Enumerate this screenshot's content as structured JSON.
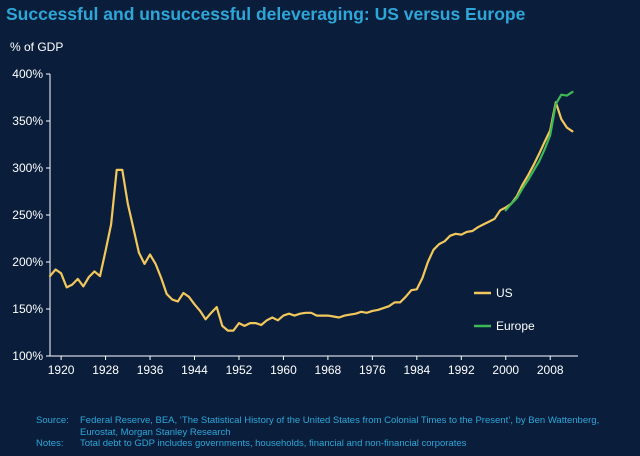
{
  "chart_data": {
    "type": "line",
    "title": "Successful and unsuccessful deleveraging: US versus Europe",
    "ylabel": "% of GDP",
    "xlabel": "",
    "xlim": [
      1918,
      2013
    ],
    "ylim": [
      100,
      400
    ],
    "x_ticks": [
      1920,
      1928,
      1936,
      1944,
      1952,
      1960,
      1968,
      1976,
      1984,
      1992,
      2000,
      2008
    ],
    "y_ticks": [
      {
        "value": 100,
        "label": "100%"
      },
      {
        "value": 150,
        "label": "150%"
      },
      {
        "value": 200,
        "label": "200%"
      },
      {
        "value": 250,
        "label": "250%"
      },
      {
        "value": 300,
        "label": "300%"
      },
      {
        "value": 350,
        "label": "350%"
      },
      {
        "value": 400,
        "label": "400%"
      }
    ],
    "legend_position": "right",
    "series": [
      {
        "name": "US",
        "color": "#f2c75c",
        "x": [
          1918,
          1919,
          1920,
          1921,
          1922,
          1923,
          1924,
          1925,
          1926,
          1927,
          1928,
          1929,
          1930,
          1931,
          1932,
          1933,
          1934,
          1935,
          1936,
          1937,
          1938,
          1939,
          1940,
          1941,
          1942,
          1943,
          1944,
          1945,
          1946,
          1947,
          1948,
          1949,
          1950,
          1951,
          1952,
          1953,
          1954,
          1955,
          1956,
          1957,
          1958,
          1959,
          1960,
          1961,
          1962,
          1963,
          1964,
          1965,
          1966,
          1967,
          1968,
          1969,
          1970,
          1971,
          1972,
          1973,
          1974,
          1975,
          1976,
          1977,
          1978,
          1979,
          1980,
          1981,
          1982,
          1983,
          1984,
          1985,
          1986,
          1987,
          1988,
          1989,
          1990,
          1991,
          1992,
          1993,
          1994,
          1995,
          1996,
          1997,
          1998,
          1999,
          2000,
          2001,
          2002,
          2003,
          2004,
          2005,
          2006,
          2007,
          2008,
          2009,
          2010,
          2011,
          2012
        ],
        "values": [
          185,
          192,
          188,
          173,
          176,
          182,
          174,
          184,
          190,
          185,
          212,
          240,
          298,
          298,
          262,
          236,
          210,
          198,
          208,
          198,
          183,
          166,
          160,
          158,
          167,
          163,
          155,
          148,
          139,
          146,
          152,
          132,
          127,
          127,
          135,
          132,
          135,
          135,
          133,
          138,
          141,
          138,
          143,
          145,
          143,
          145,
          146,
          146,
          143,
          143,
          143,
          142,
          141,
          143,
          144,
          145,
          147,
          146,
          148,
          149,
          151,
          153,
          157,
          157,
          163,
          170,
          171,
          183,
          200,
          213,
          219,
          222,
          228,
          230,
          229,
          232,
          233,
          237,
          240,
          243,
          246,
          255,
          258,
          262,
          270,
          282,
          292,
          303,
          315,
          328,
          340,
          370,
          352,
          343,
          339
        ]
      },
      {
        "name": "Europe",
        "color": "#3db855",
        "x": [
          2000,
          2001,
          2002,
          2003,
          2004,
          2005,
          2006,
          2007,
          2008,
          2009,
          2010,
          2011,
          2012
        ],
        "values": [
          255,
          262,
          268,
          278,
          287,
          297,
          307,
          320,
          335,
          368,
          378,
          377,
          381
        ]
      }
    ]
  },
  "footer": {
    "source_label": "Source:",
    "source_text": "Federal Reserve, BEA, ‘The Statistical History of the United States from Colonial Times to the Present’, by Ben Wattenberg, Eurostat, Morgan Stanley Research",
    "notes_label": "Notes:",
    "notes_text": "Total debt to GDP includes governments, households, financial and non-financial corporates"
  }
}
